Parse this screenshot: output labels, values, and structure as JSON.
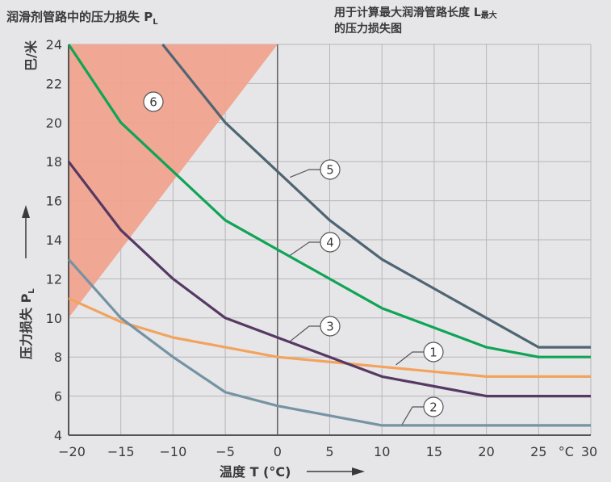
{
  "title_left": "润滑剂管路中的压力损失 P",
  "title_left_sub": "L",
  "title_right_line1": "用于计算最大润滑管路长度 L",
  "title_right_line1_sub": "最大",
  "title_right_line2": "的压力损失图",
  "y_unit": "巴/米",
  "y_label": "压力损失 P",
  "y_label_sub": "L",
  "x_label": "温度 T (°C)",
  "x_unit_inline": "°C",
  "chart_data": {
    "type": "line",
    "xlim": [
      -20,
      30
    ],
    "ylim": [
      4,
      24
    ],
    "x_ticks": [
      "−20",
      "−15",
      "−10",
      "−5",
      "0",
      "5",
      "10",
      "15",
      "20",
      "25",
      "30"
    ],
    "x_tick_values": [
      -20,
      -15,
      -10,
      -5,
      0,
      5,
      10,
      15,
      20,
      25,
      30
    ],
    "y_ticks": [
      "4",
      "6",
      "8",
      "10",
      "12",
      "14",
      "16",
      "18",
      "20",
      "22",
      "24"
    ],
    "y_tick_values": [
      4,
      6,
      8,
      10,
      12,
      14,
      16,
      18,
      20,
      22,
      24
    ],
    "grid": true,
    "region": {
      "label": "6",
      "color": "#f0a38e",
      "polygon": [
        [
          -20,
          10
        ],
        [
          -20,
          24
        ],
        [
          0,
          24
        ]
      ]
    },
    "series": [
      {
        "label": "1",
        "color": "#f2a35e",
        "x": [
          -20,
          -15,
          -10,
          -5,
          0,
          5,
          10,
          15,
          20,
          25,
          30
        ],
        "y": [
          11,
          9.8,
          9,
          8.5,
          8,
          7.75,
          7.5,
          7.25,
          7,
          7,
          7
        ]
      },
      {
        "label": "2",
        "color": "#7593a3",
        "x": [
          -20,
          -15,
          -10,
          -5,
          0,
          5,
          10,
          15,
          20,
          25,
          30
        ],
        "y": [
          13,
          10,
          8,
          6.2,
          5.5,
          5,
          4.5,
          4.5,
          4.5,
          4.5,
          4.5
        ]
      },
      {
        "label": "3",
        "color": "#563963",
        "x": [
          -20,
          -15,
          -10,
          -5,
          0,
          5,
          10,
          15,
          20,
          25,
          30
        ],
        "y": [
          18,
          14.5,
          12,
          10,
          9,
          8,
          7,
          6.5,
          6,
          6,
          6
        ]
      },
      {
        "label": "4",
        "color": "#0fa456",
        "x": [
          -20,
          -15,
          -10,
          -5,
          0,
          5,
          10,
          15,
          20,
          25,
          30
        ],
        "y": [
          24,
          20,
          17.5,
          15,
          13.5,
          12,
          10.5,
          9.5,
          8.5,
          8,
          8
        ]
      },
      {
        "label": "5",
        "color": "#4f6573",
        "x": [
          -11,
          -5,
          0,
          5,
          10,
          15,
          20,
          25,
          30
        ],
        "y": [
          24,
          20,
          17.5,
          15,
          13,
          11.5,
          10,
          8.5,
          8.5
        ]
      }
    ]
  }
}
